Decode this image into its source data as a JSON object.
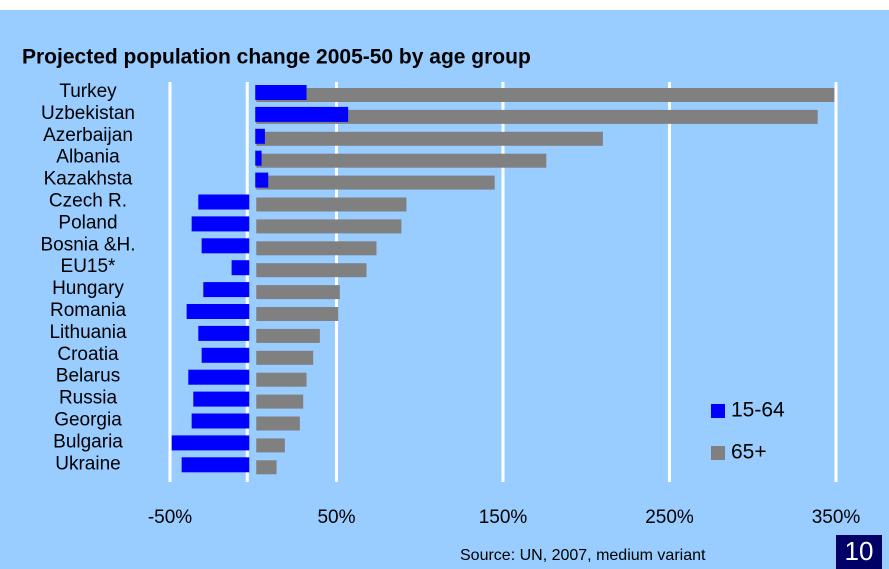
{
  "chart_data": {
    "type": "bar",
    "orientation": "horizontal",
    "title": "Projected population change 2005-50 by age group",
    "categories": [
      "Turkey",
      "Uzbekistan",
      "Azerbaijan",
      "Albania",
      "Kazakhsta",
      "Czech R.",
      "Poland",
      "Bosnia &H.",
      "EU15*",
      "Hungary",
      "Romania",
      "Lithuania",
      "Croatia",
      "Belarus",
      "Russia",
      "Georgia",
      "Bulgaria",
      "Ukraine"
    ],
    "series": [
      {
        "name": "65+",
        "color": "#808080",
        "values": [
          349,
          339,
          210,
          176,
          145,
          92,
          89,
          74,
          68,
          52,
          51,
          40,
          36,
          32,
          30,
          28,
          19,
          14
        ]
      },
      {
        "name": "15-64",
        "color": "#0000ff",
        "values": [
          32,
          57,
          7,
          5,
          9,
          -33,
          -37,
          -31,
          -13,
          -30,
          -40,
          -33,
          -31,
          -39,
          -36,
          -37,
          -49,
          -43
        ]
      }
    ],
    "xlim": [
      -50,
      350
    ],
    "xticks": [
      {
        "value": -50,
        "label": "-50%"
      },
      {
        "value": 50,
        "label": "50%"
      },
      {
        "value": 150,
        "label": "150%"
      },
      {
        "value": 250,
        "label": "250%"
      },
      {
        "value": 350,
        "label": "350%"
      }
    ],
    "grid": true,
    "source": "Source: UN, 2007, medium variant",
    "page_number": "10"
  }
}
